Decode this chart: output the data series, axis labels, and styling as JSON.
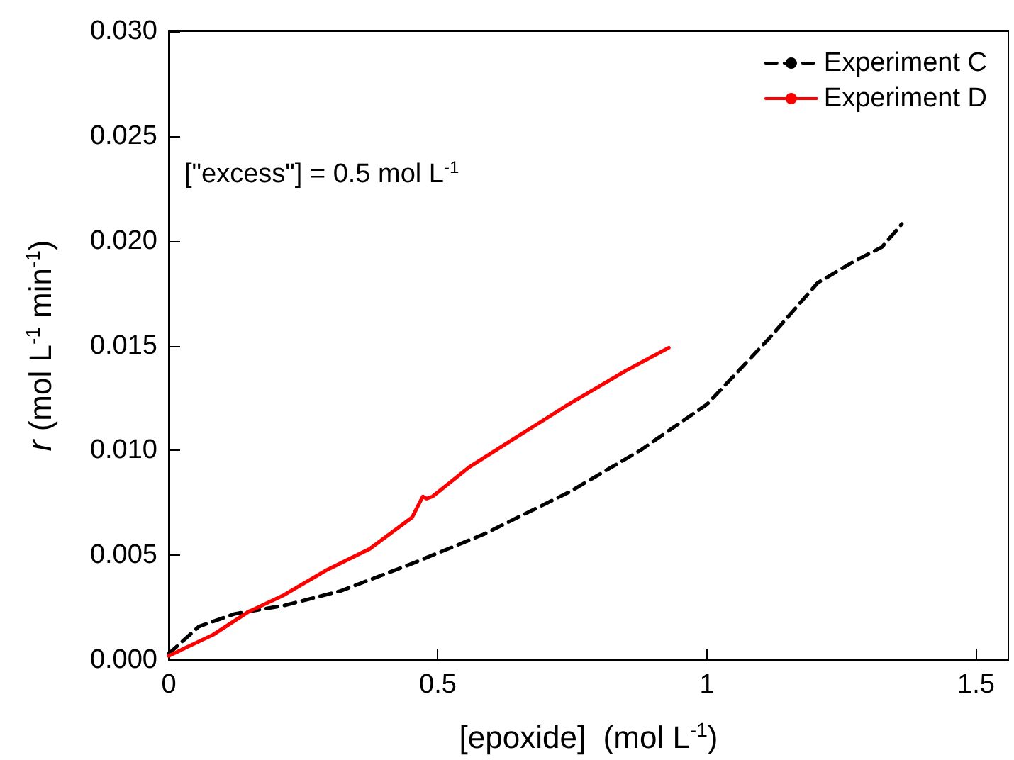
{
  "chart_data": {
    "type": "line",
    "xlabel": "[epoxide]  (mol L$^{-1}$)",
    "ylabel": "r (mol L$^{-1}$ min$^{-1}$)",
    "annotations": [
      "[\"excess\"] = 0.5 mol L$^{-1}$"
    ],
    "xlim": [
      0,
      1.56
    ],
    "xticks": [
      0,
      0.5,
      1,
      1.5
    ],
    "ylim": [
      0,
      0.03
    ],
    "yticks": [
      {
        "value": 0,
        "label": "0.000"
      },
      {
        "value": 0.005,
        "label": "0.005"
      },
      {
        "value": 0.01,
        "label": "0.010"
      },
      {
        "value": 0.015,
        "label": "0.015"
      },
      {
        "value": 0.02,
        "label": "0.020"
      },
      {
        "value": 0.025,
        "label": "0.025"
      },
      {
        "value": 0.03,
        "label": "0.030"
      }
    ],
    "grid": false,
    "legend": "top right",
    "marker": "none",
    "series": [
      {
        "name": "Experiment C",
        "color": "#000000",
        "line_style": "dashed",
        "x": [
          0,
          0.056,
          0.122,
          0.214,
          0.32,
          0.452,
          0.585,
          0.743,
          0.876,
          1.0,
          1.114,
          1.206,
          1.272,
          1.325,
          1.362
        ],
        "values": [
          0.0003,
          0.0016,
          0.0022,
          0.0026,
          0.0033,
          0.0046,
          0.006,
          0.008,
          0.01,
          0.0122,
          0.0153,
          0.018,
          0.019,
          0.0197,
          0.0208
        ]
      },
      {
        "name": "Experiment D",
        "color": "#ff0000",
        "line_style": "solid",
        "x": [
          0,
          0.082,
          0.148,
          0.214,
          0.294,
          0.373,
          0.452,
          0.472,
          0.479,
          0.49,
          0.558,
          0.638,
          0.743,
          0.849,
          0.929
        ],
        "values": [
          0.0002,
          0.0012,
          0.0023,
          0.0031,
          0.0043,
          0.0053,
          0.0068,
          0.0078,
          0.0077,
          0.0078,
          0.0092,
          0.0105,
          0.0122,
          0.0138,
          0.0149
        ]
      }
    ]
  }
}
